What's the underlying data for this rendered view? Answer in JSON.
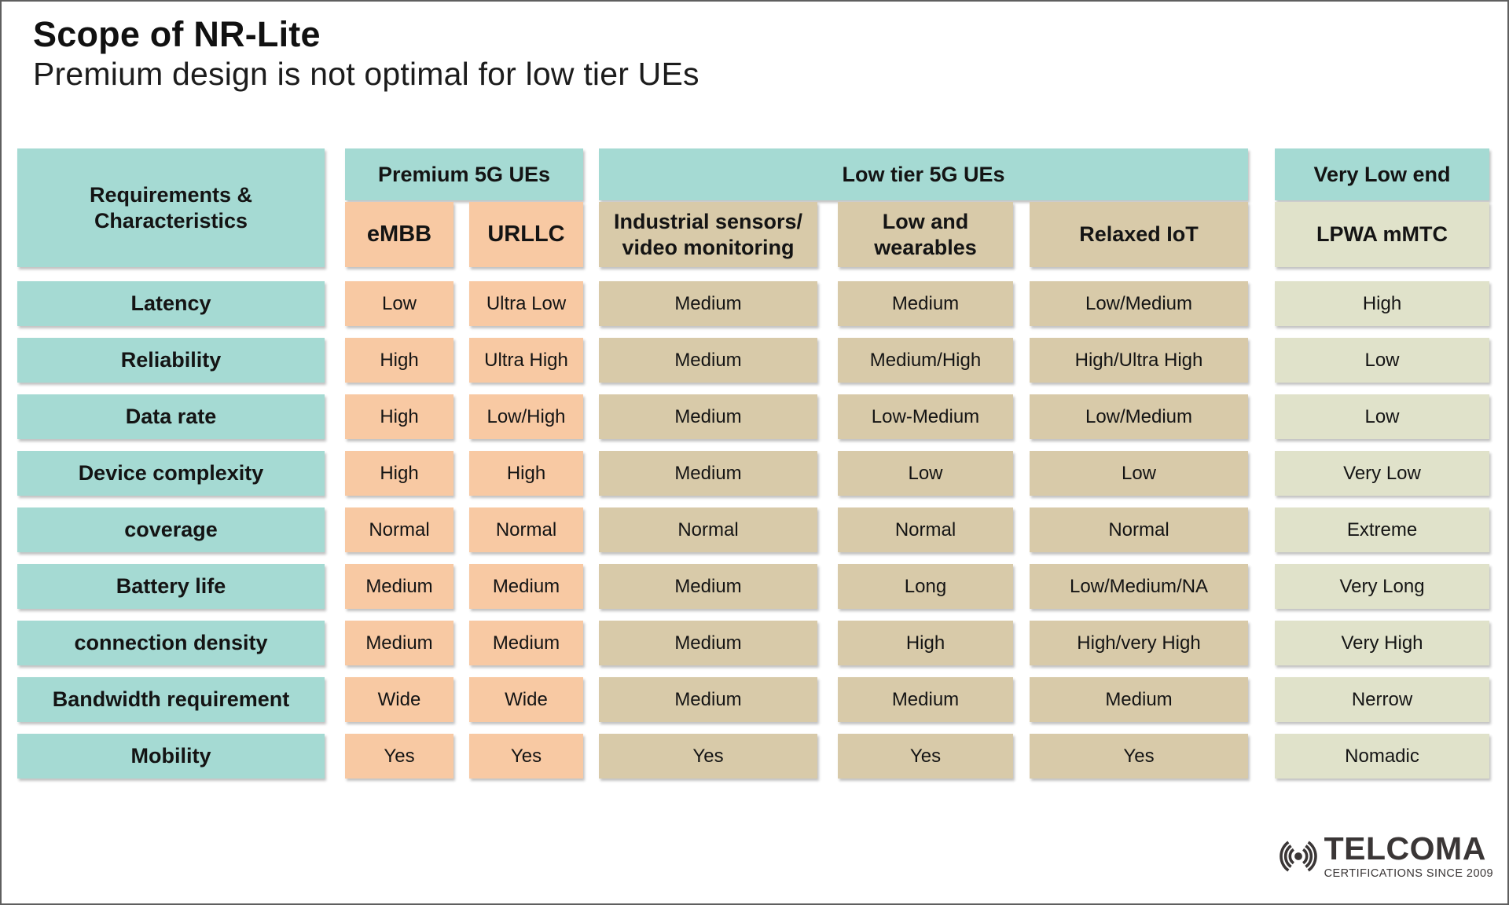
{
  "title": "Scope of NR-Lite",
  "subtitle": "Premium design is not optimal for low tier UEs",
  "colors": {
    "teal": "#a5dad3",
    "peach": "#f8c9a3",
    "tan": "#d8caa9",
    "sage": "#e0e2ca",
    "logo_gray": "#3a3636"
  },
  "table": {
    "corner_header": "Requirements &\nCharacteristics",
    "groups": {
      "premium": "Premium 5G UEs",
      "low_tier": "Low tier 5G UEs",
      "very_low": "Very Low end"
    },
    "columns": [
      {
        "label": "eMBB",
        "tone": "peach"
      },
      {
        "label": "URLLC",
        "tone": "peach"
      },
      {
        "label": "Industrial sensors/\nvideo monitoring",
        "tone": "tan"
      },
      {
        "label": "Low and\nwearables",
        "tone": "tan"
      },
      {
        "label": "Relaxed IoT",
        "tone": "tan"
      },
      {
        "label": "LPWA mMTC",
        "tone": "sage"
      }
    ],
    "rows": [
      {
        "label": "Latency",
        "cells": [
          "Low",
          "Ultra Low",
          "Medium",
          "Medium",
          "Low/Medium",
          "High"
        ]
      },
      {
        "label": "Reliability",
        "cells": [
          "High",
          "Ultra High",
          "Medium",
          "Medium/High",
          "High/Ultra High",
          "Low"
        ]
      },
      {
        "label": "Data rate",
        "cells": [
          "High",
          "Low/High",
          "Medium",
          "Low-Medium",
          "Low/Medium",
          "Low"
        ]
      },
      {
        "label": "Device complexity",
        "cells": [
          "High",
          "High",
          "Medium",
          "Low",
          "Low",
          "Very Low"
        ]
      },
      {
        "label": "coverage",
        "cells": [
          "Normal",
          "Normal",
          "Normal",
          "Normal",
          "Normal",
          "Extreme"
        ]
      },
      {
        "label": "Battery life",
        "cells": [
          "Medium",
          "Medium",
          "Medium",
          "Long",
          "Low/Medium/NA",
          "Very Long"
        ]
      },
      {
        "label": "connection density",
        "cells": [
          "Medium",
          "Medium",
          "Medium",
          "High",
          "High/very High",
          "Very High"
        ]
      },
      {
        "label": "Bandwidth requirement",
        "cells": [
          "Wide",
          "Wide",
          "Medium",
          "Medium",
          "Medium",
          "Nerrow"
        ]
      },
      {
        "label": "Mobility",
        "cells": [
          "Yes",
          "Yes",
          "Yes",
          "Yes",
          "Yes",
          "Nomadic"
        ]
      }
    ]
  },
  "logo": {
    "name": "TELCOMA",
    "tagline": "CERTIFICATIONS SINCE 2009",
    "icon": "radio-waves-icon"
  }
}
